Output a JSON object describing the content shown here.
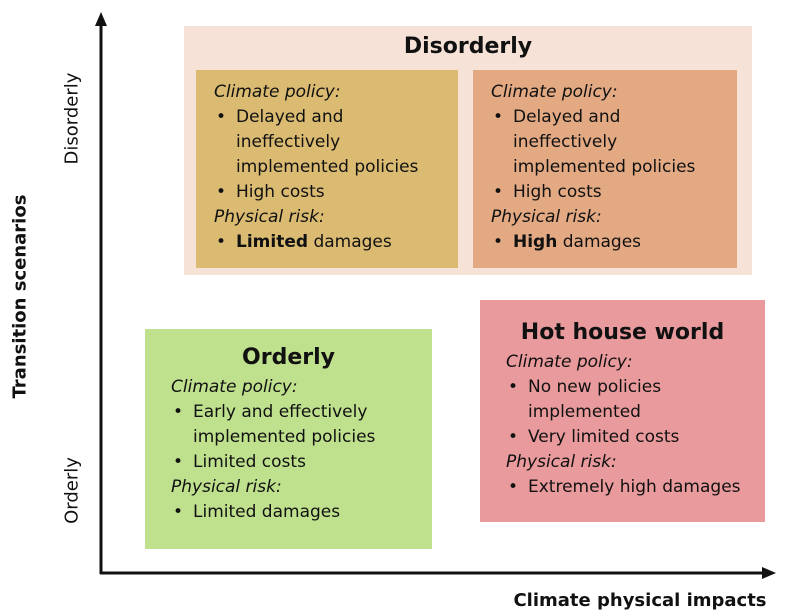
{
  "axes": {
    "y_label": "Transition scenarios",
    "y_top": "Disorderly",
    "y_bottom": "Orderly",
    "x_label": "Climate physical impacts"
  },
  "boxes": {
    "disorderly": {
      "title": "Disorderly",
      "panels": [
        {
          "policy_heading": "Climate policy:",
          "policy_items": [
            "Delayed and ineffectively implemented policies",
            "High costs"
          ],
          "risk_heading": "Physical risk:",
          "risk_items": [
            {
              "strong": "Limited",
              "rest": "damages"
            }
          ]
        },
        {
          "policy_heading": "Climate policy:",
          "policy_items": [
            "Delayed and ineffectively implemented policies",
            "High costs"
          ],
          "risk_heading": "Physical risk:",
          "risk_items": [
            {
              "strong": "High",
              "rest": "damages"
            }
          ]
        }
      ]
    },
    "orderly": {
      "title": "Orderly",
      "policy_heading": "Climate policy:",
      "policy_items": [
        "Early and effectively implemented policies",
        "Limited costs"
      ],
      "risk_heading": "Physical risk:",
      "risk_items": [
        "Limited damages"
      ]
    },
    "hot_house": {
      "title": "Hot house world",
      "policy_heading": "Climate policy:",
      "policy_items": [
        "No new policies implemented",
        "Very limited costs"
      ],
      "risk_heading": "Physical risk:",
      "risk_items": [
        "Extremely high damages"
      ]
    }
  }
}
